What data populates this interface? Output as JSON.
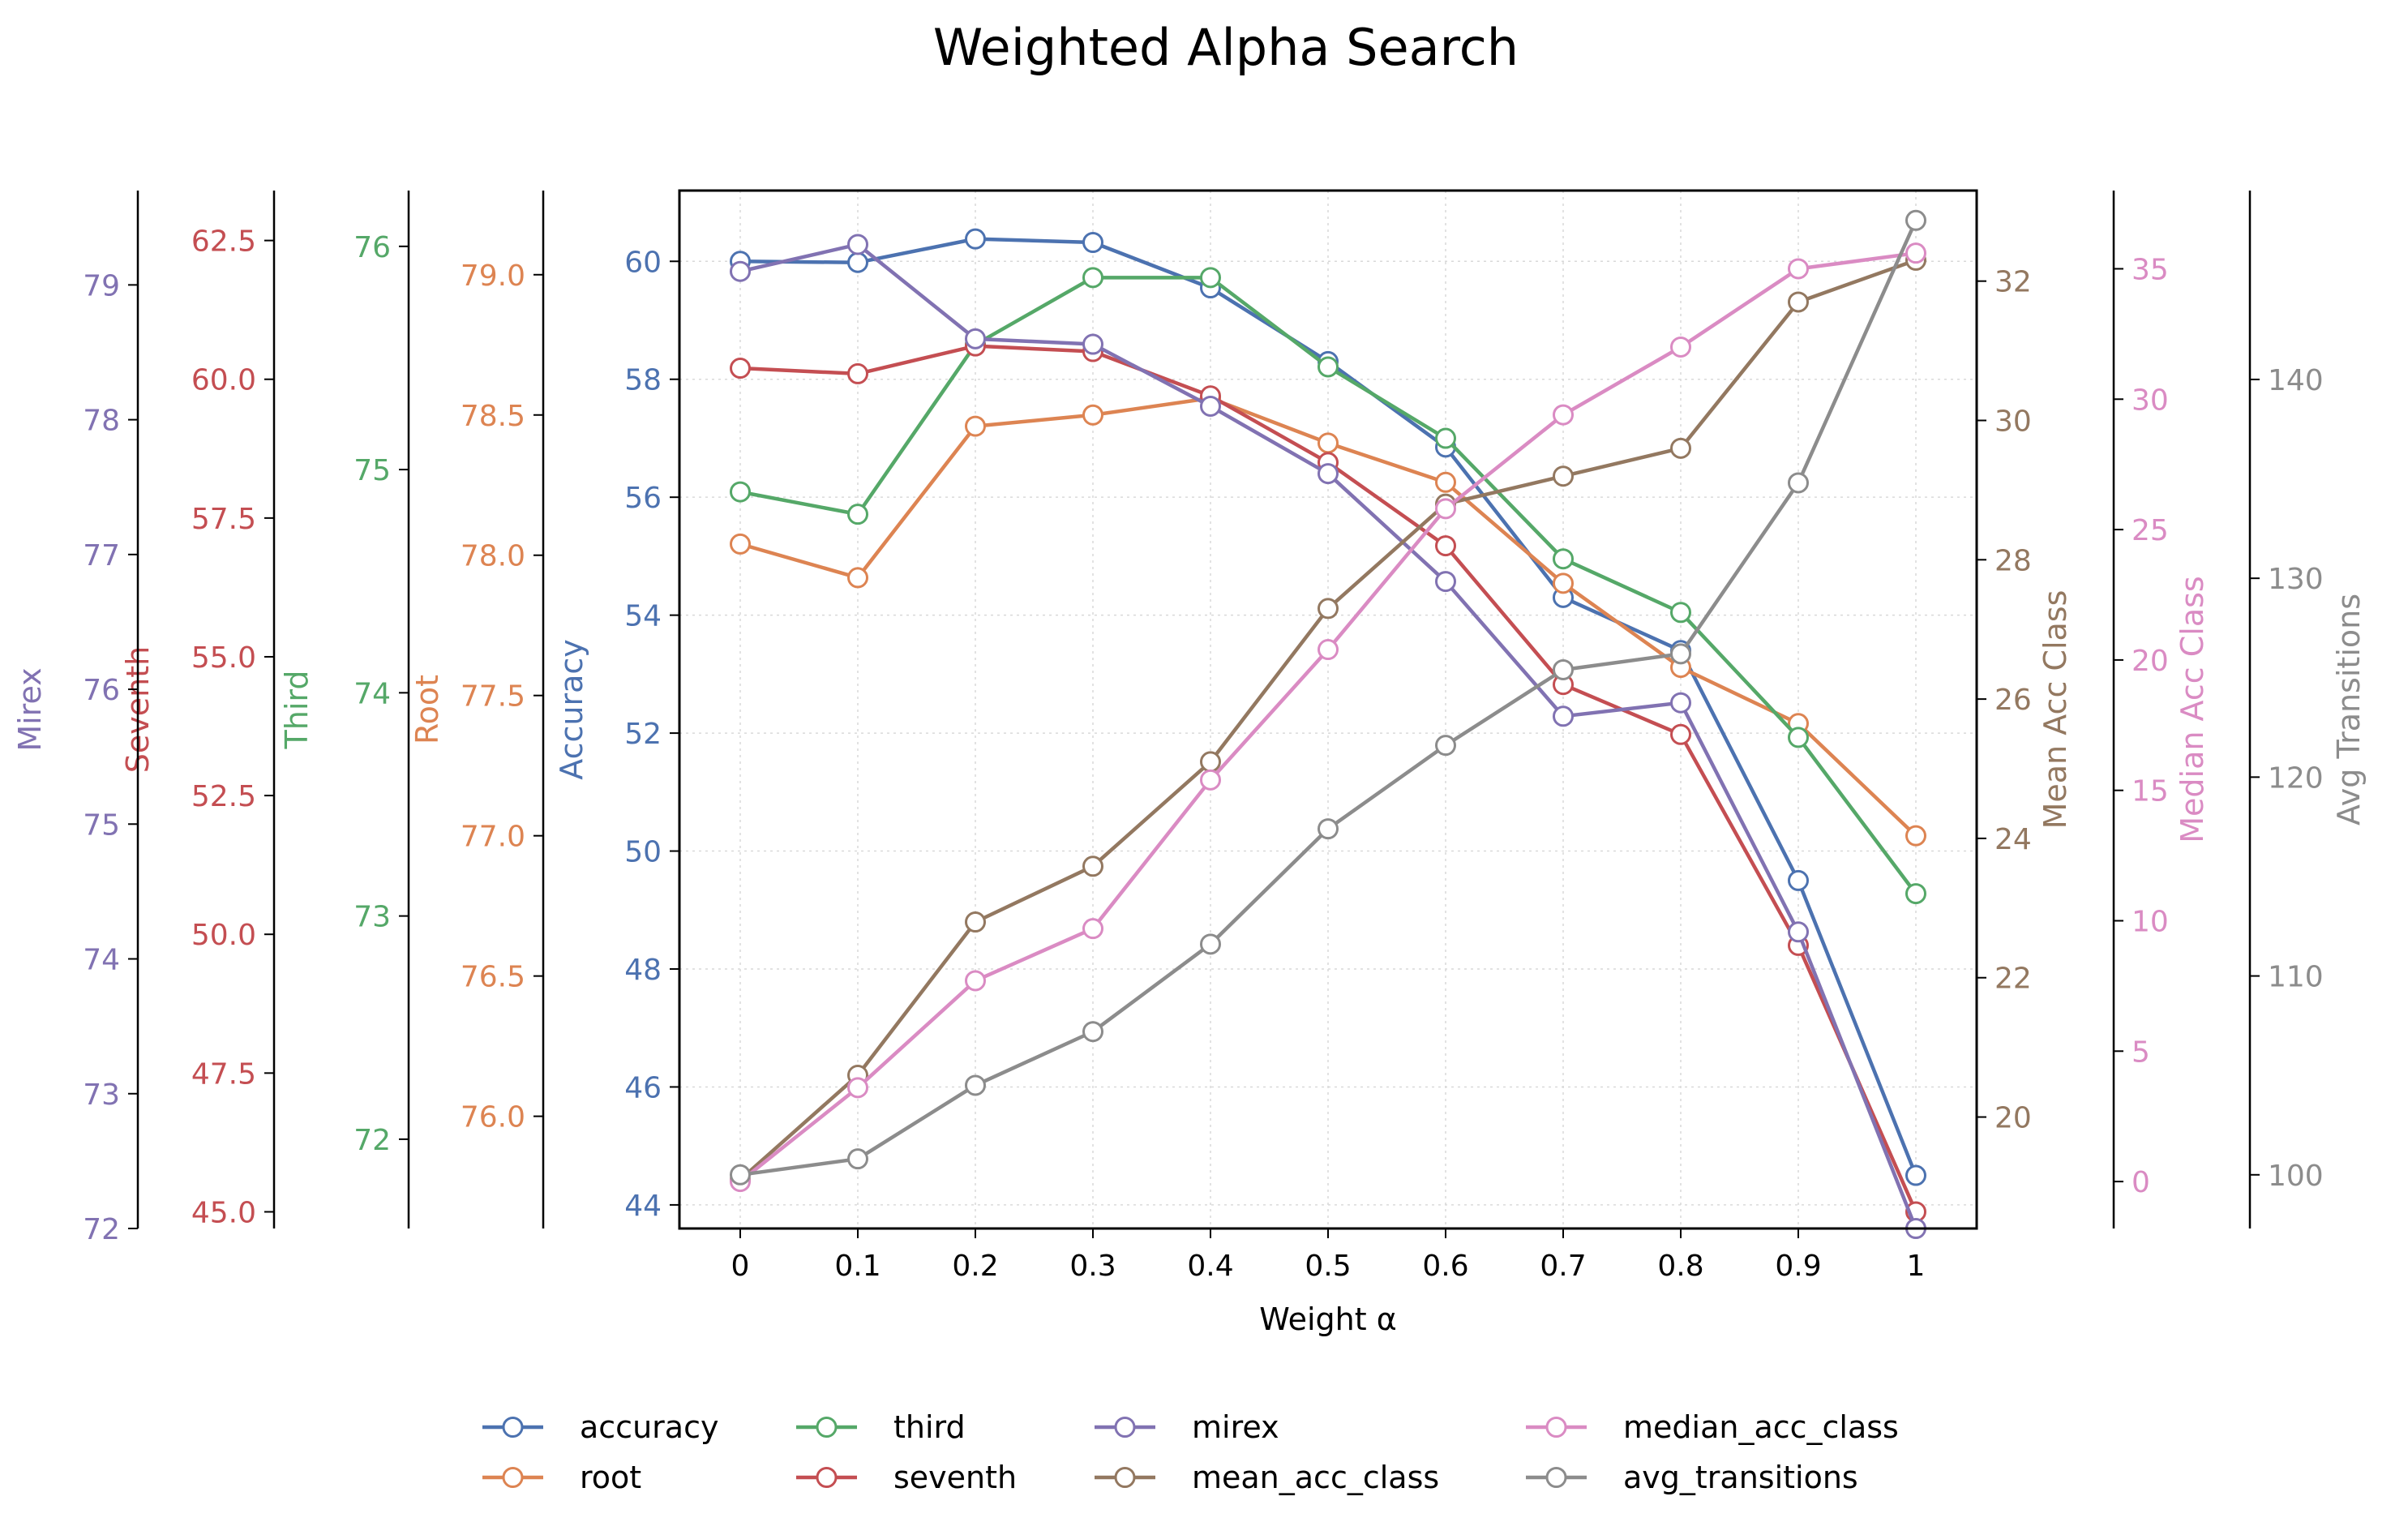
{
  "chart_data": {
    "type": "line",
    "title": "Weighted Alpha Search",
    "xlabel": "Weight α",
    "x": [
      0,
      0.1,
      0.2,
      0.3,
      0.4,
      0.5,
      0.6,
      0.7,
      0.8,
      0.9,
      1
    ],
    "x_tick_labels": [
      "0",
      "0.1",
      "0.2",
      "0.3",
      "0.4",
      "0.5",
      "0.6",
      "0.7",
      "0.8",
      "0.9",
      "1"
    ],
    "grid": true,
    "legend_position": "bottom",
    "marker": "hollow-circle",
    "series": [
      {
        "name": "accuracy",
        "axis": "accuracy",
        "color": "#4c72b0",
        "values": [
          60.0,
          59.98,
          60.38,
          60.32,
          59.55,
          58.3,
          56.85,
          54.3,
          53.4,
          49.5,
          44.5
        ]
      },
      {
        "name": "root",
        "axis": "root",
        "color": "#dd8452",
        "values": [
          78.04,
          77.92,
          78.46,
          78.5,
          78.56,
          78.4,
          78.26,
          77.9,
          77.6,
          77.4,
          77.0
        ]
      },
      {
        "name": "third",
        "axis": "third",
        "color": "#55a868",
        "values": [
          74.9,
          74.8,
          75.56,
          75.86,
          75.86,
          75.46,
          75.14,
          74.6,
          74.36,
          73.8,
          73.1
        ]
      },
      {
        "name": "seventh",
        "axis": "seventh",
        "color": "#c44e52",
        "values": [
          60.2,
          60.1,
          60.6,
          60.5,
          59.7,
          58.5,
          57.0,
          54.5,
          53.6,
          49.8,
          45.0
        ]
      },
      {
        "name": "mirex",
        "axis": "mirex",
        "color": "#8172b2",
        "values": [
          79.1,
          79.3,
          78.6,
          78.56,
          78.1,
          77.6,
          76.8,
          75.8,
          75.9,
          74.2,
          72.0
        ]
      },
      {
        "name": "mean_acc_class",
        "axis": "mean_acc_class",
        "color": "#937860",
        "values": [
          19.1,
          20.6,
          22.8,
          23.6,
          25.1,
          27.3,
          28.8,
          29.2,
          29.6,
          31.7,
          32.3
        ]
      },
      {
        "name": "median_acc_class",
        "axis": "median_acc_class",
        "color": "#da8bc3",
        "values": [
          0,
          3.6,
          7.7,
          9.7,
          15.4,
          20.4,
          25.8,
          29.4,
          32.0,
          35.0,
          35.6
        ]
      },
      {
        "name": "avg_transitions",
        "axis": "avg_transitions",
        "color": "#8c8c8c",
        "values": [
          100,
          100.8,
          104.5,
          107.2,
          111.6,
          117.4,
          121.6,
          125.4,
          126.2,
          134.8,
          148.0
        ]
      }
    ],
    "axes": {
      "accuracy": {
        "label": "Accuracy",
        "color": "#4c72b0",
        "side": "left",
        "ylim": [
          43.6,
          61.2
        ],
        "ticks": [
          44,
          46,
          48,
          50,
          52,
          54,
          56,
          58,
          60
        ],
        "tick_labels": [
          "44",
          "46",
          "48",
          "50",
          "52",
          "54",
          "56",
          "58",
          "60"
        ]
      },
      "root": {
        "label": "Root",
        "color": "#dd8452",
        "side": "left",
        "ylim": [
          75.6,
          79.3
        ],
        "ticks": [
          76.0,
          76.5,
          77.0,
          77.5,
          78.0,
          78.5,
          79.0
        ],
        "tick_labels": [
          "76.0",
          "76.5",
          "77.0",
          "77.5",
          "78.0",
          "78.5",
          "79.0"
        ]
      },
      "third": {
        "label": "Third",
        "color": "#55a868",
        "side": "left",
        "ylim": [
          71.6,
          76.25
        ],
        "ticks": [
          72,
          73,
          74,
          75,
          76
        ],
        "tick_labels": [
          "72",
          "73",
          "74",
          "75",
          "76"
        ]
      },
      "seventh": {
        "label": "Seventh",
        "color": "#c44e52",
        "side": "left",
        "ylim": [
          44.7,
          63.4
        ],
        "ticks": [
          45.0,
          47.5,
          50.0,
          52.5,
          55.0,
          57.5,
          60.0,
          62.5
        ],
        "tick_labels": [
          "45.0",
          "47.5",
          "50.0",
          "52.5",
          "55.0",
          "57.5",
          "60.0",
          "62.5"
        ]
      },
      "mirex": {
        "label": "Mirex",
        "color": "#8172b2",
        "side": "left",
        "ylim": [
          72.0,
          79.7
        ],
        "ticks": [
          72,
          73,
          74,
          75,
          76,
          77,
          78,
          79
        ],
        "tick_labels": [
          "72",
          "73",
          "74",
          "75",
          "76",
          "77",
          "78",
          "79"
        ]
      },
      "mean_acc_class": {
        "label": "Mean Acc Class",
        "color": "#937860",
        "side": "right",
        "ylim": [
          18.4,
          33.3
        ],
        "ticks": [
          20,
          22,
          24,
          26,
          28,
          30,
          32
        ],
        "tick_labels": [
          "20",
          "22",
          "24",
          "26",
          "28",
          "30",
          "32"
        ]
      },
      "median_acc_class": {
        "label": "Median Acc Class",
        "color": "#da8bc3",
        "side": "right",
        "ylim": [
          -1.8,
          38.0
        ],
        "ticks": [
          0,
          5,
          10,
          15,
          20,
          25,
          30,
          35
        ],
        "tick_labels": [
          "0",
          "5",
          "10",
          "15",
          "20",
          "25",
          "30",
          "35"
        ]
      },
      "avg_transitions": {
        "label": "Avg Transitions",
        "color": "#8c8c8c",
        "side": "right",
        "ylim": [
          97.3,
          149.5
        ],
        "ticks": [
          100,
          110,
          120,
          130,
          140
        ],
        "tick_labels": [
          "100",
          "110",
          "120",
          "130",
          "140"
        ]
      }
    }
  }
}
